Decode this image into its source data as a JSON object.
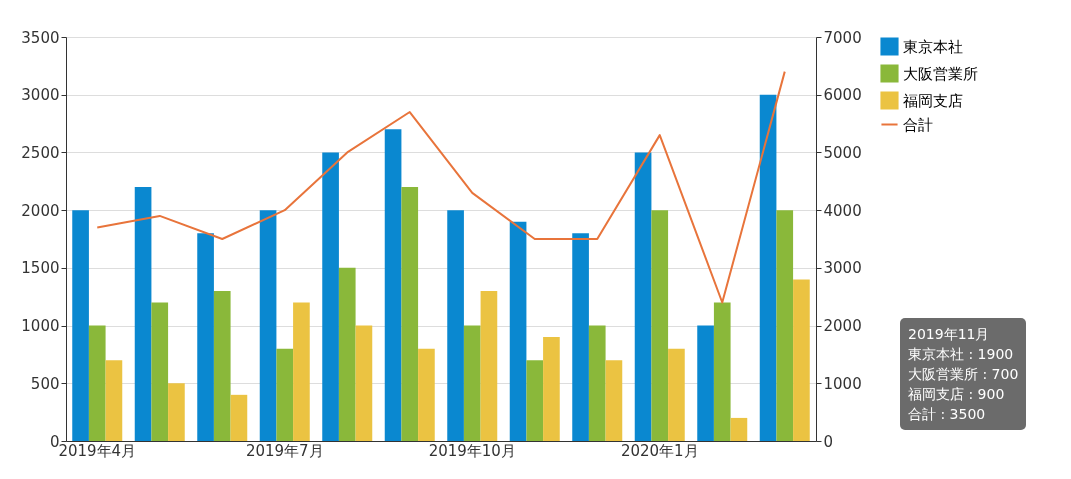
{
  "chart_data": {
    "type": "bar",
    "categories": [
      "2019年4月",
      null,
      null,
      "2019年7月",
      null,
      null,
      "2019年10月",
      null,
      null,
      "2020年1月",
      null,
      null
    ],
    "series": [
      {
        "name": "東京本社",
        "color": "#0a88d0",
        "values": [
          2000,
          2200,
          1800,
          2000,
          2500,
          2700,
          2000,
          1900,
          1800,
          2500,
          1000,
          3000
        ]
      },
      {
        "name": "大阪営業所",
        "color": "#8ab83a",
        "values": [
          1000,
          1200,
          1300,
          800,
          1500,
          2200,
          1000,
          700,
          1000,
          2000,
          1200,
          2000
        ]
      },
      {
        "name": "福岡支店",
        "color": "#ebc342",
        "values": [
          700,
          500,
          400,
          1200,
          1000,
          800,
          1300,
          900,
          700,
          800,
          200,
          1400
        ]
      },
      {
        "name": "合計",
        "color": "#e8743b",
        "type": "line",
        "axis": "y2",
        "values": [
          3700,
          3900,
          3500,
          4000,
          5000,
          5700,
          4300,
          3500,
          3500,
          5300,
          2400,
          6400
        ]
      }
    ],
    "ylim": [
      0,
      3500
    ],
    "yticks": [
      0,
      500,
      1000,
      1500,
      2000,
      2500,
      3000,
      3500
    ],
    "y2lim": [
      0,
      7000
    ],
    "y2ticks": [
      0,
      1000,
      2000,
      3000,
      4000,
      5000,
      6000,
      7000
    ],
    "grid": "y",
    "legend": "right",
    "line_style": "solid",
    "annotations": [
      "2019年11月",
      "東京本社 : 1900",
      "大阪営業所 : 700",
      "福岡支店 : 900",
      "合計 : 3500"
    ]
  }
}
